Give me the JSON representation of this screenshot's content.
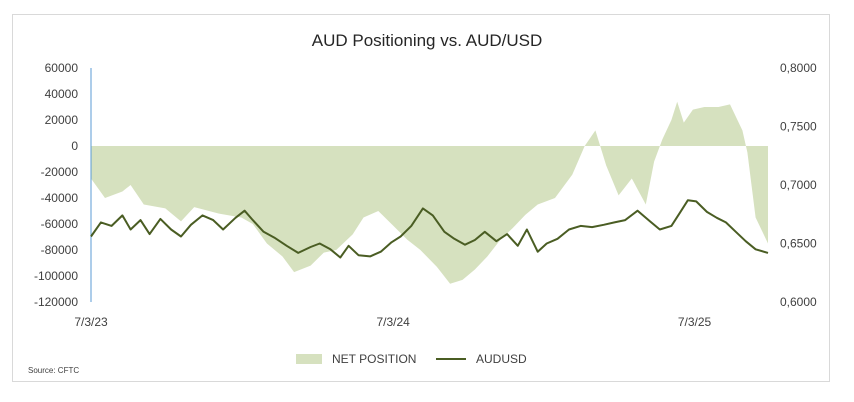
{
  "chart_data": {
    "type": "area",
    "title": "AUD Positioning vs. AUD/USD",
    "source": "Source: CFTC",
    "x_tick_labels": [
      "7/3/23",
      "7/3/24",
      "7/3/25"
    ],
    "left_axis": {
      "ticks": [
        "60000",
        "40000",
        "20000",
        "0",
        "-20000",
        "-40000",
        "-60000",
        "-80000",
        "-100000",
        "-120000"
      ],
      "range": [
        -120000,
        60000
      ]
    },
    "right_axis": {
      "ticks": [
        "0,8000",
        "0,7500",
        "0,7000",
        "0,6500",
        "0,6000"
      ],
      "range": [
        0.6,
        0.8
      ]
    },
    "x_range": [
      "2023-07-03",
      "2025-09-30"
    ],
    "legend_position": "bottom",
    "series": [
      {
        "name": "NET POSITION",
        "kind": "area",
        "axis": "left",
        "color": "#d6e1bf",
        "points": [
          [
            "2023-07-03",
            -25000
          ],
          [
            "2023-07-20",
            -40000
          ],
          [
            "2023-08-10",
            -35000
          ],
          [
            "2023-08-20",
            -30000
          ],
          [
            "2023-09-05",
            -45000
          ],
          [
            "2023-10-01",
            -48000
          ],
          [
            "2023-10-20",
            -58000
          ],
          [
            "2023-11-05",
            -47000
          ],
          [
            "2023-12-05",
            -52000
          ],
          [
            "2024-01-01",
            -55000
          ],
          [
            "2024-01-15",
            -60000
          ],
          [
            "2024-02-01",
            -75000
          ],
          [
            "2024-02-20",
            -85000
          ],
          [
            "2024-03-05",
            -97000
          ],
          [
            "2024-03-25",
            -92000
          ],
          [
            "2024-04-10",
            -82000
          ],
          [
            "2024-04-25",
            -80000
          ],
          [
            "2024-05-15",
            -68000
          ],
          [
            "2024-05-28",
            -55000
          ],
          [
            "2024-06-15",
            -50000
          ],
          [
            "2024-07-01",
            -60000
          ],
          [
            "2024-07-20",
            -72000
          ],
          [
            "2024-08-05",
            -80000
          ],
          [
            "2024-08-25",
            -93000
          ],
          [
            "2024-09-10",
            -106000
          ],
          [
            "2024-09-25",
            -103000
          ],
          [
            "2024-10-10",
            -95000
          ],
          [
            "2024-10-25",
            -85000
          ],
          [
            "2024-11-10",
            -72000
          ],
          [
            "2024-11-25",
            -63000
          ],
          [
            "2024-12-10",
            -53000
          ],
          [
            "2024-12-25",
            -45000
          ],
          [
            "2025-01-15",
            -40000
          ],
          [
            "2025-02-05",
            -22000
          ],
          [
            "2025-02-20",
            0
          ],
          [
            "2025-03-05",
            12000
          ],
          [
            "2025-03-18",
            -15000
          ],
          [
            "2025-04-02",
            -38000
          ],
          [
            "2025-04-18",
            -25000
          ],
          [
            "2025-05-05",
            -45000
          ],
          [
            "2025-05-15",
            -12000
          ],
          [
            "2025-05-25",
            5000
          ],
          [
            "2025-06-05",
            20000
          ],
          [
            "2025-06-12",
            34000
          ],
          [
            "2025-06-20",
            18000
          ],
          [
            "2025-07-01",
            28000
          ],
          [
            "2025-07-15",
            30000
          ],
          [
            "2025-08-01",
            30000
          ],
          [
            "2025-08-15",
            32000
          ],
          [
            "2025-08-30",
            12000
          ],
          [
            "2025-09-05",
            -5000
          ],
          [
            "2025-09-15",
            -55000
          ],
          [
            "2025-09-30",
            -75000
          ]
        ]
      },
      {
        "name": "AUDUSD",
        "kind": "line",
        "axis": "right",
        "color": "#4a5d23",
        "points": [
          [
            "2023-07-03",
            0.656
          ],
          [
            "2023-07-15",
            0.668
          ],
          [
            "2023-07-28",
            0.665
          ],
          [
            "2023-08-10",
            0.674
          ],
          [
            "2023-08-20",
            0.662
          ],
          [
            "2023-09-01",
            0.67
          ],
          [
            "2023-09-12",
            0.658
          ],
          [
            "2023-09-25",
            0.671
          ],
          [
            "2023-10-08",
            0.662
          ],
          [
            "2023-10-20",
            0.656
          ],
          [
            "2023-11-01",
            0.666
          ],
          [
            "2023-11-15",
            0.674
          ],
          [
            "2023-11-28",
            0.67
          ],
          [
            "2023-12-10",
            0.662
          ],
          [
            "2023-12-25",
            0.672
          ],
          [
            "2024-01-05",
            0.678
          ],
          [
            "2024-01-15",
            0.67
          ],
          [
            "2024-01-28",
            0.66
          ],
          [
            "2024-02-10",
            0.655
          ],
          [
            "2024-02-25",
            0.648
          ],
          [
            "2024-03-10",
            0.642
          ],
          [
            "2024-03-25",
            0.647
          ],
          [
            "2024-04-05",
            0.65
          ],
          [
            "2024-04-18",
            0.645
          ],
          [
            "2024-04-30",
            0.638
          ],
          [
            "2024-05-10",
            0.648
          ],
          [
            "2024-05-22",
            0.64
          ],
          [
            "2024-06-05",
            0.639
          ],
          [
            "2024-06-18",
            0.643
          ],
          [
            "2024-07-01",
            0.651
          ],
          [
            "2024-07-12",
            0.656
          ],
          [
            "2024-07-25",
            0.665
          ],
          [
            "2024-08-08",
            0.68
          ],
          [
            "2024-08-20",
            0.674
          ],
          [
            "2024-09-03",
            0.66
          ],
          [
            "2024-09-15",
            0.654
          ],
          [
            "2024-09-28",
            0.649
          ],
          [
            "2024-10-10",
            0.653
          ],
          [
            "2024-10-22",
            0.66
          ],
          [
            "2024-11-05",
            0.652
          ],
          [
            "2024-11-18",
            0.658
          ],
          [
            "2024-12-01",
            0.648
          ],
          [
            "2024-12-12",
            0.662
          ],
          [
            "2024-12-25",
            0.643
          ],
          [
            "2025-01-05",
            0.65
          ],
          [
            "2025-01-18",
            0.654
          ],
          [
            "2025-02-01",
            0.662
          ],
          [
            "2025-02-15",
            0.665
          ],
          [
            "2025-03-01",
            0.664
          ],
          [
            "2025-03-15",
            0.666
          ],
          [
            "2025-03-28",
            0.668
          ],
          [
            "2025-04-10",
            0.67
          ],
          [
            "2025-04-25",
            0.678
          ],
          [
            "2025-05-10",
            0.669
          ],
          [
            "2025-05-22",
            0.662
          ],
          [
            "2025-06-05",
            0.665
          ],
          [
            "2025-06-15",
            0.676
          ],
          [
            "2025-06-25",
            0.687
          ],
          [
            "2025-07-05",
            0.686
          ],
          [
            "2025-07-18",
            0.677
          ],
          [
            "2025-07-30",
            0.672
          ],
          [
            "2025-08-10",
            0.668
          ],
          [
            "2025-08-22",
            0.66
          ],
          [
            "2025-09-03",
            0.652
          ],
          [
            "2025-09-15",
            0.645
          ],
          [
            "2025-09-30",
            0.642
          ]
        ]
      }
    ]
  }
}
